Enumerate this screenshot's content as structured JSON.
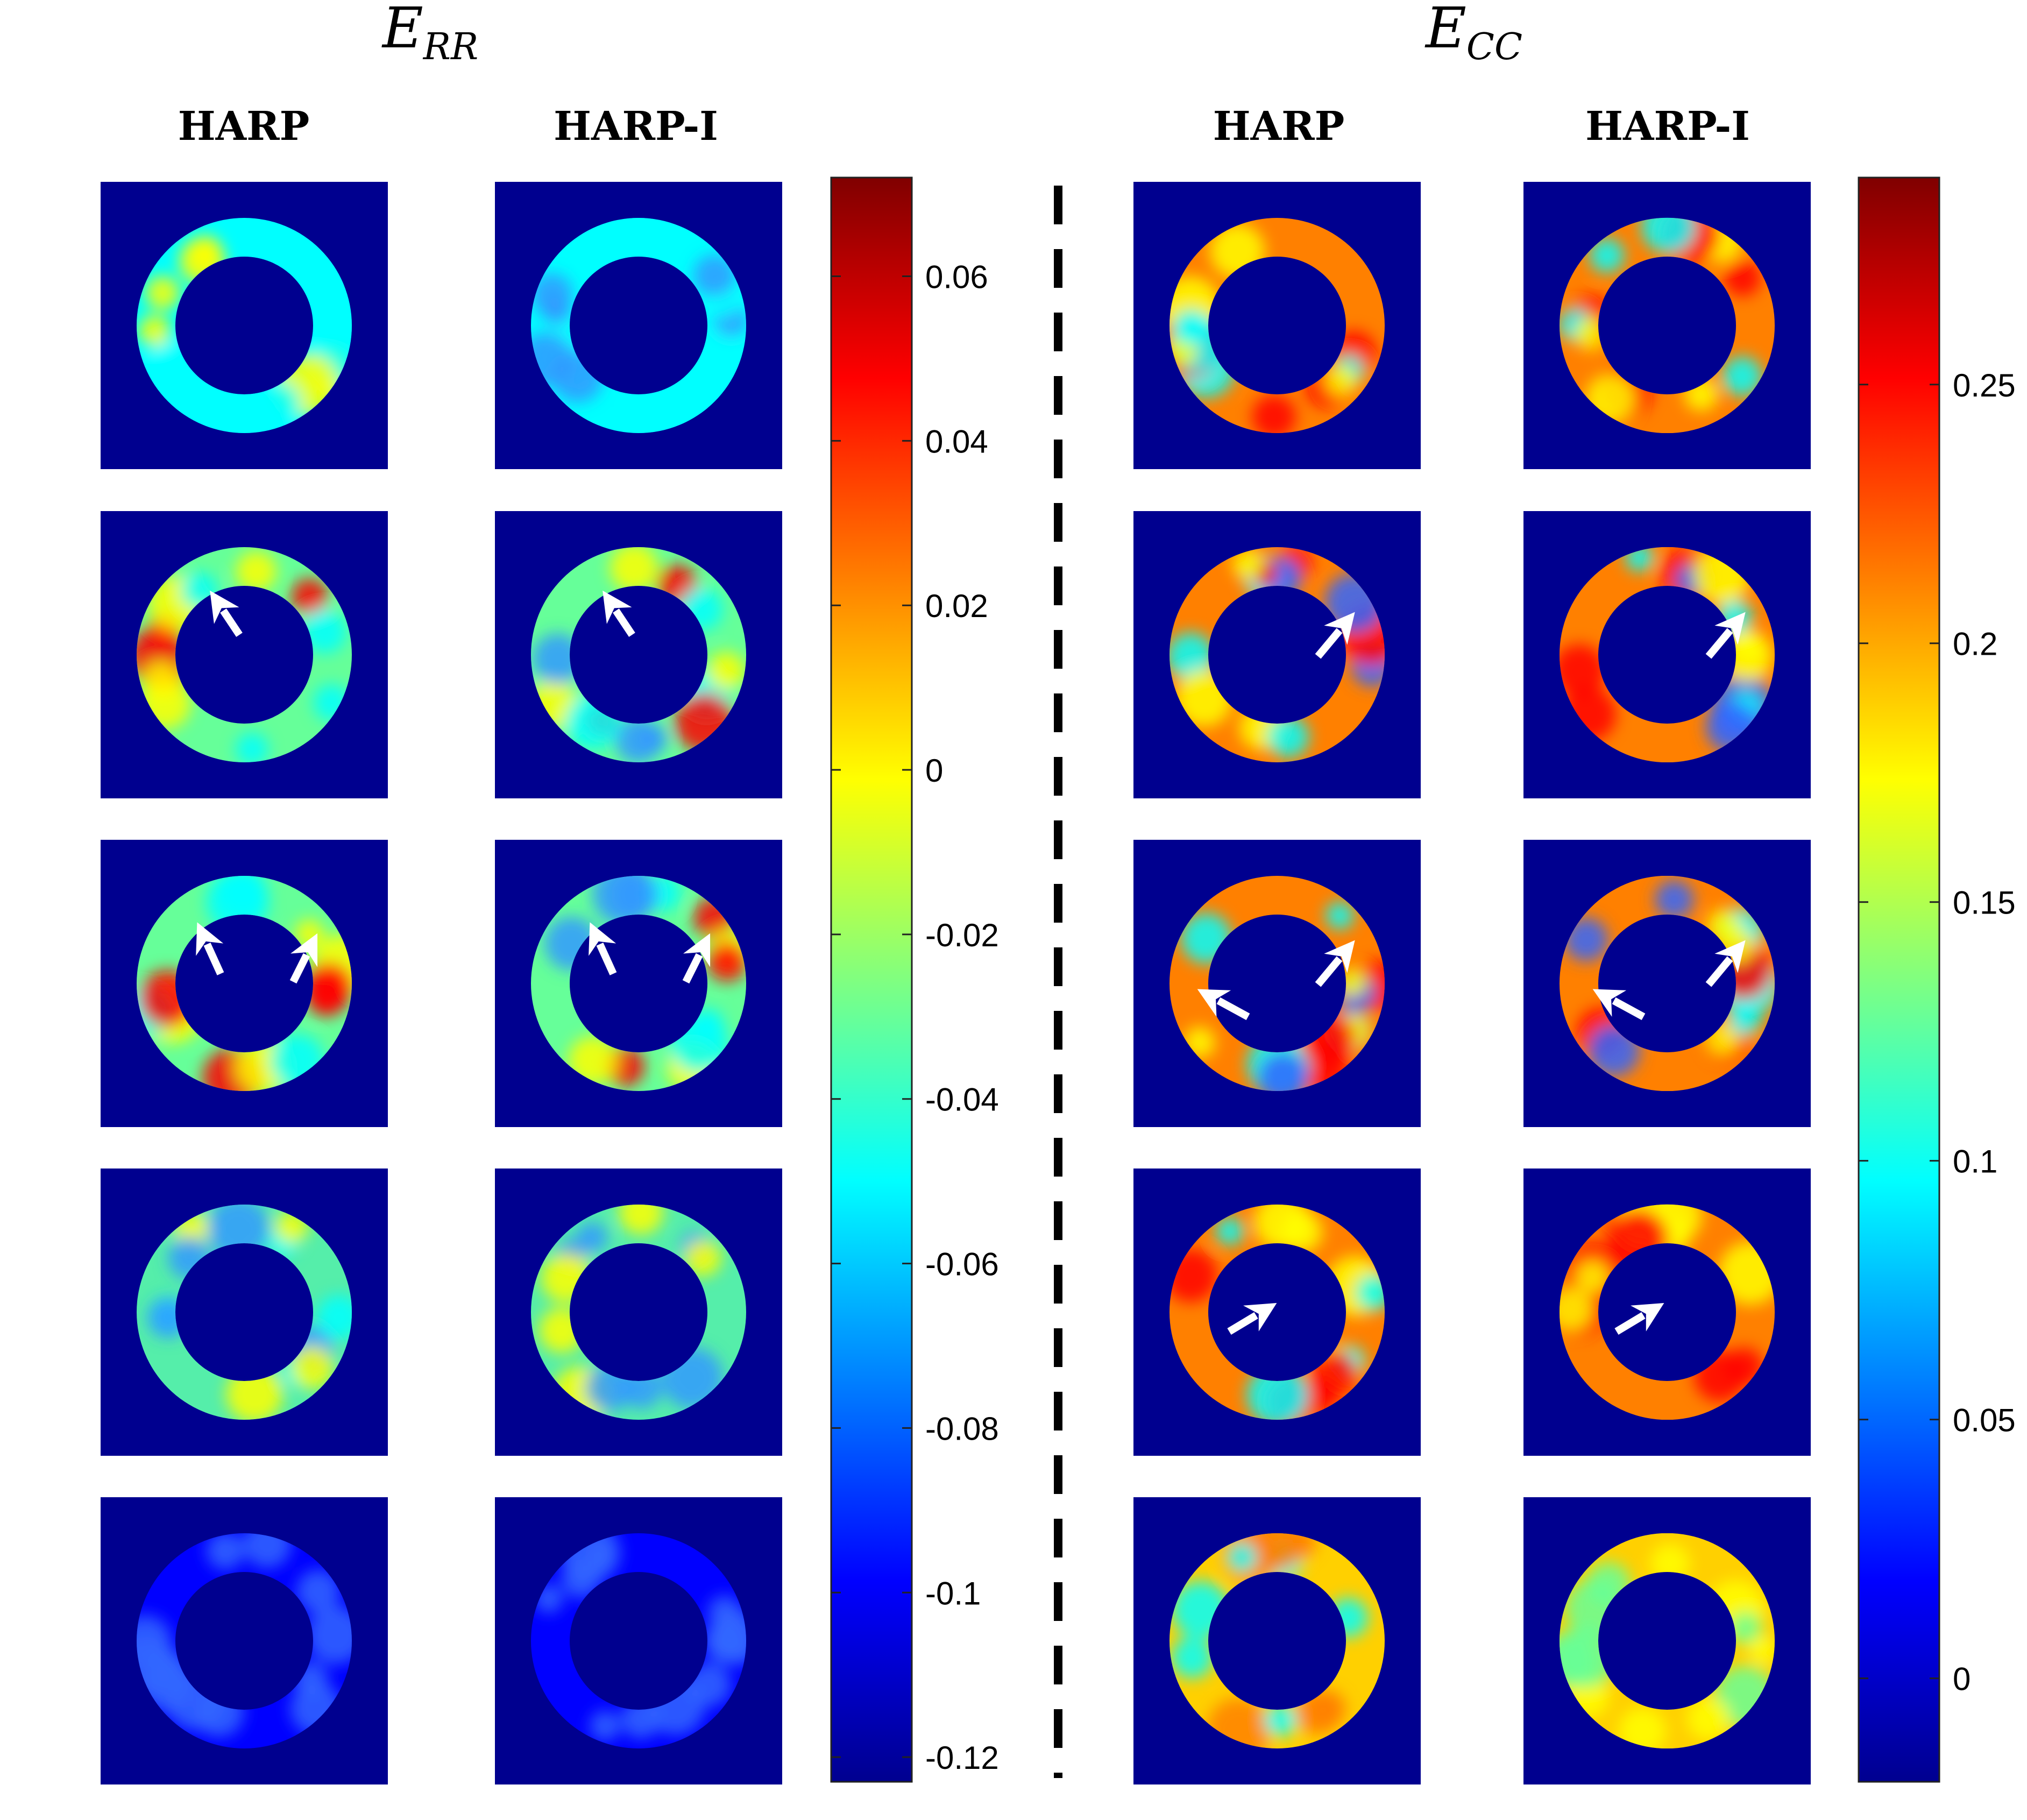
{
  "panels": [
    {
      "title_main": "E",
      "title_sub": "RR",
      "columns": [
        "HARP",
        "HARP-I"
      ],
      "colorbar": {
        "ticks": [
          "0.06",
          "0.04",
          "0.02",
          "0",
          "-0.02",
          "-0.04",
          "-0.06",
          "-0.08",
          "-0.1",
          "-0.12"
        ],
        "tick_values": [
          0.06,
          0.04,
          0.02,
          0,
          -0.02,
          -0.04,
          -0.06,
          -0.08,
          -0.1,
          -0.12
        ],
        "range": [
          -0.123,
          0.072
        ]
      }
    },
    {
      "title_main": "E",
      "title_sub": "CC",
      "columns": [
        "HARP",
        "HARP-I"
      ],
      "colorbar": {
        "ticks": [
          "0.25",
          "0.2",
          "0.15",
          "0.1",
          "0.05",
          "0"
        ],
        "tick_values": [
          0.25,
          0.2,
          0.15,
          0.1,
          0.05,
          0
        ],
        "range": [
          -0.02,
          0.29
        ]
      }
    }
  ],
  "rows": 5,
  "colors": {
    "background": "#00008f",
    "dark_red": "#800000",
    "red": "#ff0000",
    "orange": "#ff8000",
    "yellow": "#ffff00",
    "cyan": "#00ffff",
    "blue": "#0000ff",
    "navy": "#00008f",
    "arrow": "#ffffff",
    "divider": "#000000"
  }
}
